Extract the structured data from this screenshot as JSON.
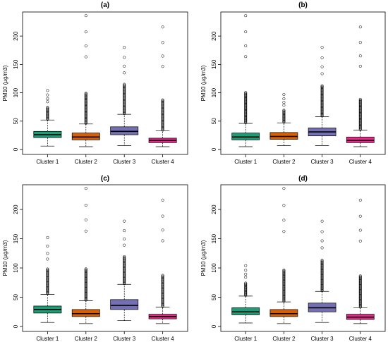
{
  "chart_data": [
    {
      "type": "boxplot",
      "title": "(a)",
      "ylabel": "PM10 (µg/m3)",
      "ylim": [
        0,
        235
      ],
      "yticks": [
        0,
        50,
        100,
        150,
        200
      ],
      "categories": [
        "Cluster 1",
        "Cluster 2",
        "Cluster 3",
        "Cluster 4"
      ],
      "colors": [
        "#1b9e77",
        "#d95f02",
        "#7570b3",
        "#e7298a"
      ],
      "boxes": [
        {
          "whisker_low": 6,
          "q1": 21,
          "median": 26,
          "q3": 32,
          "whisker_high": 52,
          "outlier_max": 104
        },
        {
          "whisker_low": 5,
          "q1": 17,
          "median": 22,
          "q3": 29,
          "whisker_high": 45,
          "outlier_max": 236
        },
        {
          "whisker_low": 7,
          "q1": 26,
          "median": 32,
          "q3": 40,
          "whisker_high": 62,
          "outlier_max": 180
        },
        {
          "whisker_low": 5,
          "q1": 12,
          "median": 16,
          "q3": 20,
          "whisker_high": 33,
          "outlier_max": 216
        }
      ]
    },
    {
      "type": "boxplot",
      "title": "(b)",
      "ylabel": "PM10 (µg/m3)",
      "ylim": [
        0,
        235
      ],
      "yticks": [
        0,
        50,
        100,
        150,
        200
      ],
      "categories": [
        "Cluster 1",
        "Cluster 2",
        "Cluster 3",
        "Cluster 4"
      ],
      "colors": [
        "#1b9e77",
        "#d95f02",
        "#7570b3",
        "#e7298a"
      ],
      "boxes": [
        {
          "whisker_low": 5,
          "q1": 17,
          "median": 22,
          "q3": 29,
          "whisker_high": 46,
          "outlier_max": 236
        },
        {
          "whisker_low": 7,
          "q1": 18,
          "median": 23,
          "q3": 30,
          "whisker_high": 47,
          "outlier_max": 97
        },
        {
          "whisker_low": 7,
          "q1": 24,
          "median": 31,
          "q3": 38,
          "whisker_high": 58,
          "outlier_max": 180
        },
        {
          "whisker_low": 5,
          "q1": 12,
          "median": 16,
          "q3": 22,
          "whisker_high": 34,
          "outlier_max": 216
        }
      ]
    },
    {
      "type": "boxplot",
      "title": "(c)",
      "ylabel": "PM10 (µg/m3)",
      "ylim": [
        0,
        235
      ],
      "yticks": [
        0,
        50,
        100,
        150,
        200
      ],
      "categories": [
        "Cluster 1",
        "Cluster 2",
        "Cluster 3",
        "Cluster 4"
      ],
      "colors": [
        "#1b9e77",
        "#d95f02",
        "#7570b3",
        "#e7298a"
      ],
      "boxes": [
        {
          "whisker_low": 7,
          "q1": 23,
          "median": 29,
          "q3": 35,
          "whisker_high": 55,
          "outlier_max": 152
        },
        {
          "whisker_low": 5,
          "q1": 17,
          "median": 22,
          "q3": 29,
          "whisker_high": 44,
          "outlier_max": 236
        },
        {
          "whisker_low": 10,
          "q1": 29,
          "median": 36,
          "q3": 46,
          "whisker_high": 72,
          "outlier_max": 180
        },
        {
          "whisker_low": 5,
          "q1": 13,
          "median": 17,
          "q3": 21,
          "whisker_high": 33,
          "outlier_max": 216
        }
      ]
    },
    {
      "type": "boxplot",
      "title": "(d)",
      "ylabel": "PM10 (µg/m3)",
      "ylim": [
        0,
        235
      ],
      "yticks": [
        0,
        50,
        100,
        150,
        200
      ],
      "categories": [
        "Cluster 1",
        "Cluster 2",
        "Cluster 3",
        "Cluster 4"
      ],
      "colors": [
        "#1b9e77",
        "#d95f02",
        "#7570b3",
        "#e7298a"
      ],
      "boxes": [
        {
          "whisker_low": 6,
          "q1": 20,
          "median": 25,
          "q3": 32,
          "whisker_high": 52,
          "outlier_max": 104
        },
        {
          "whisker_low": 5,
          "q1": 17,
          "median": 22,
          "q3": 29,
          "whisker_high": 42,
          "outlier_max": 236
        },
        {
          "whisker_low": 7,
          "q1": 25,
          "median": 32,
          "q3": 40,
          "whisker_high": 60,
          "outlier_max": 180
        },
        {
          "whisker_low": 5,
          "q1": 12,
          "median": 16,
          "q3": 21,
          "whisker_high": 32,
          "outlier_max": 216
        }
      ]
    }
  ]
}
